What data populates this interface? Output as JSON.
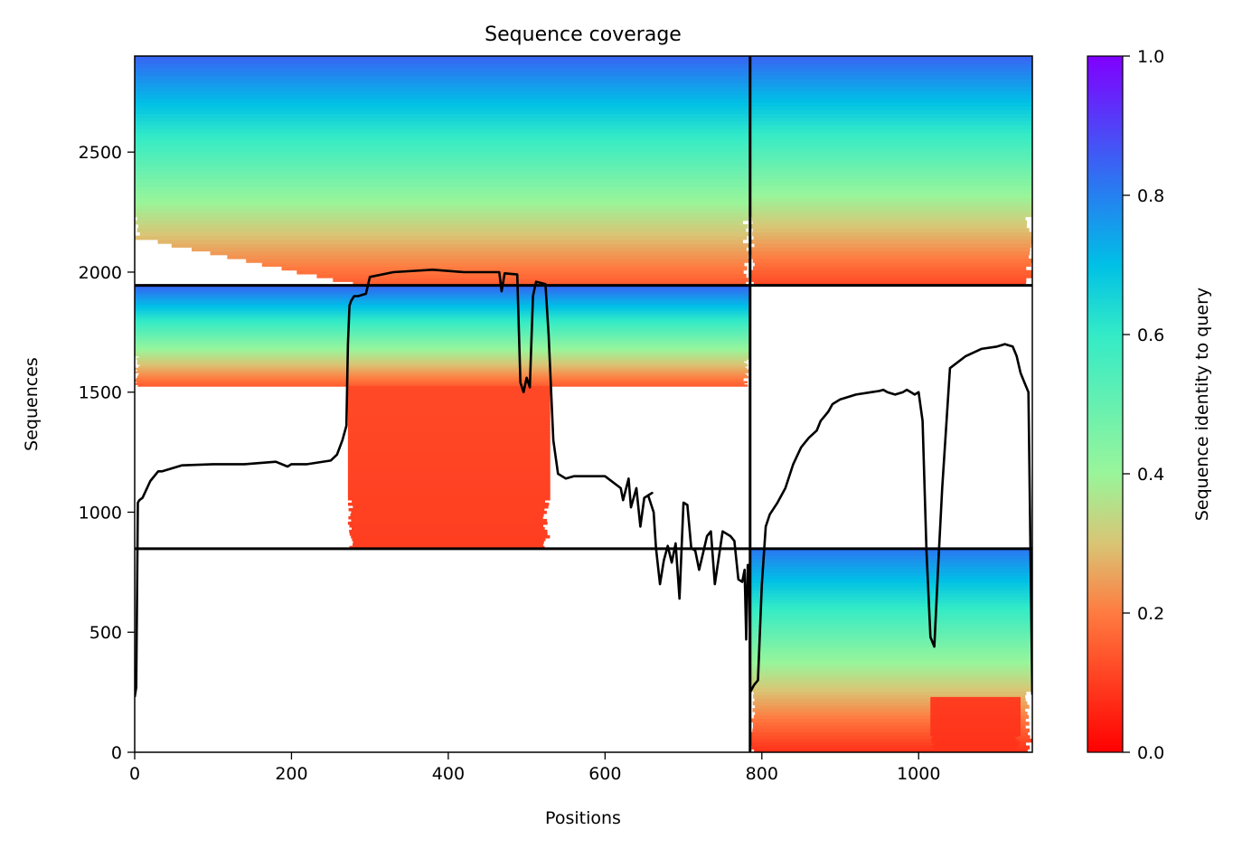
{
  "chart_data": {
    "type": "heatmap",
    "title": "Sequence coverage",
    "xlabel": "Positions",
    "ylabel": "Sequences",
    "xlim": [
      0,
      1145
    ],
    "ylim": [
      0,
      2900
    ],
    "xticks": [
      0,
      200,
      400,
      600,
      800,
      1000
    ],
    "yticks": [
      0,
      500,
      1000,
      1500,
      2000,
      2500
    ],
    "colorbar": {
      "label": "Sequence identity to query",
      "range": [
        0.0,
        1.0
      ],
      "ticks": [
        "0.0",
        "0.2",
        "0.4",
        "0.6",
        "0.8",
        "1.0"
      ],
      "colormap": "rainbow",
      "stops": [
        {
          "v": 0.0,
          "color": "#ff0000"
        },
        {
          "v": 0.2,
          "color": "#ff7b40"
        },
        {
          "v": 0.3,
          "color": "#d9c575"
        },
        {
          "v": 0.4,
          "color": "#99f59a"
        },
        {
          "v": 0.6,
          "color": "#33ebc7"
        },
        {
          "v": 0.7,
          "color": "#00c0e6"
        },
        {
          "v": 0.8,
          "color": "#2580f0"
        },
        {
          "v": 1.0,
          "color": "#8000ff"
        }
      ]
    },
    "boundaries": {
      "vertical_x": 785,
      "horizontal_y": [
        848,
        1945
      ]
    },
    "blocks": [
      {
        "name": "domain-1-alignments",
        "x": [
          0,
          785
        ],
        "y": [
          1945,
          2900
        ],
        "identity_top": 0.85,
        "identity_bottom": 0.15,
        "start_x_bottom": 275
      },
      {
        "name": "domain-1b-alignments",
        "x": [
          0,
          785
        ],
        "y": [
          1525,
          1945
        ],
        "identity_top": 0.85,
        "identity_bottom": 0.15
      },
      {
        "name": "low-identity-block",
        "x": [
          272,
          530
        ],
        "y": [
          848,
          1525
        ],
        "identity_top": 0.12,
        "identity_bottom": 0.1
      },
      {
        "name": "domain-2-alignments",
        "x": [
          785,
          1145
        ],
        "y": [
          1945,
          2900
        ],
        "identity_top": 0.85,
        "identity_bottom": 0.12
      },
      {
        "name": "domain-2b-alignments",
        "x": [
          785,
          1145
        ],
        "y": [
          0,
          848
        ],
        "identity_top": 0.82,
        "identity_bottom": 0.08
      },
      {
        "name": "low-identity-block-2",
        "x": [
          1015,
          1130
        ],
        "y": [
          0,
          230
        ],
        "identity_top": 0.1,
        "identity_bottom": 0.08
      }
    ],
    "coverage_line": {
      "color": "#000000",
      "x": [
        0,
        2,
        4,
        6,
        10,
        20,
        30,
        35,
        60,
        100,
        140,
        180,
        195,
        200,
        220,
        250,
        258,
        265,
        270,
        272,
        274,
        276,
        280,
        285,
        295,
        300,
        330,
        380,
        420,
        465,
        468,
        472,
        488,
        492,
        496,
        500,
        504,
        508,
        512,
        518,
        524,
        528,
        534,
        540,
        550,
        560,
        600,
        620,
        623,
        630,
        633,
        640,
        645,
        650,
        660,
        655,
        662,
        665,
        670,
        675,
        680,
        685,
        690,
        695,
        700,
        705,
        710,
        715,
        720,
        725,
        730,
        735,
        740,
        750,
        760,
        765,
        770,
        775,
        778,
        780,
        782,
        784,
        785
      ],
      "y": [
        230,
        270,
        1040,
        1050,
        1060,
        1130,
        1170,
        1170,
        1195,
        1200,
        1200,
        1210,
        1190,
        1200,
        1200,
        1215,
        1240,
        1300,
        1360,
        1700,
        1860,
        1880,
        1900,
        1900,
        1910,
        1980,
        2000,
        2010,
        2000,
        2000,
        1920,
        1995,
        1990,
        1540,
        1500,
        1560,
        1520,
        1900,
        1960,
        1955,
        1950,
        1740,
        1300,
        1160,
        1140,
        1150,
        1150,
        1100,
        1050,
        1140,
        1020,
        1100,
        940,
        1060,
        1080,
        1070,
        1000,
        850,
        700,
        800,
        860,
        790,
        870,
        640,
        1040,
        1030,
        850,
        840,
        760,
        830,
        900,
        920,
        700,
        920,
        900,
        880,
        720,
        710,
        760,
        470,
        780,
        780,
        250
      ],
      "x2": [
        785,
        790,
        795,
        800,
        805,
        810,
        820,
        830,
        840,
        850,
        860,
        870,
        875,
        880,
        885,
        890,
        900,
        920,
        940,
        950,
        955,
        960,
        970,
        980,
        985,
        990,
        995,
        1000,
        1005,
        1010,
        1015,
        1020,
        1025,
        1030,
        1040,
        1060,
        1080,
        1100,
        1110,
        1120,
        1125,
        1130,
        1135,
        1140,
        1145
      ],
      "y2": [
        250,
        280,
        300,
        700,
        940,
        990,
        1040,
        1100,
        1200,
        1270,
        1310,
        1340,
        1380,
        1400,
        1420,
        1450,
        1470,
        1490,
        1500,
        1505,
        1510,
        1500,
        1490,
        1500,
        1510,
        1500,
        1490,
        1500,
        1380,
        840,
        480,
        440,
        780,
        1100,
        1600,
        1650,
        1680,
        1690,
        1700,
        1690,
        1650,
        1580,
        1540,
        1500,
        240
      ]
    }
  }
}
